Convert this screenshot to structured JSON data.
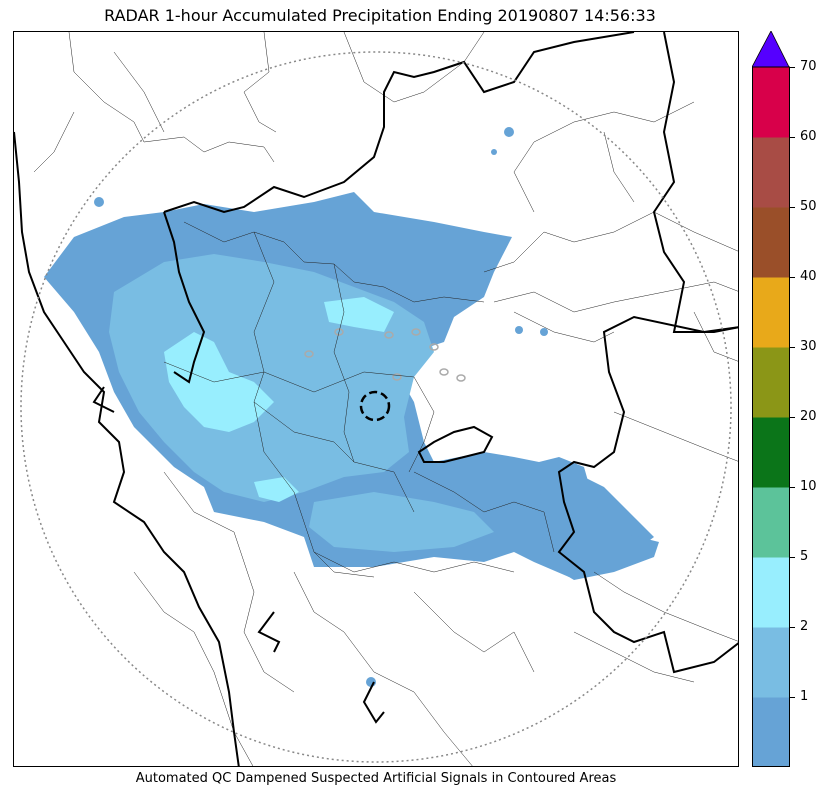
{
  "title": "RADAR 1-hour Accumulated Precipitation Ending 20190807 14:56:33",
  "caption": "Automated QC Dampened Suspected Artificial Signals in Contoured Areas",
  "colorbar": {
    "ticks": [
      "70",
      "60",
      "50",
      "40",
      "30",
      "20",
      "10",
      "5",
      "2",
      "1"
    ],
    "bins": [
      {
        "color": "#66a3d6"
      },
      {
        "color": "#79bde3"
      },
      {
        "color": "#98eefe"
      },
      {
        "color": "#5cc39a"
      },
      {
        "color": "#0b7519"
      },
      {
        "color": "#8b9617"
      },
      {
        "color": "#e8a91a"
      },
      {
        "color": "#9a4f29"
      },
      {
        "color": "#a84c45"
      },
      {
        "color": "#d8004a"
      }
    ],
    "extend_color": "#5500ff"
  },
  "map": {
    "range_ring": "dotted",
    "radar_site_marker": "dashed-circle"
  }
}
